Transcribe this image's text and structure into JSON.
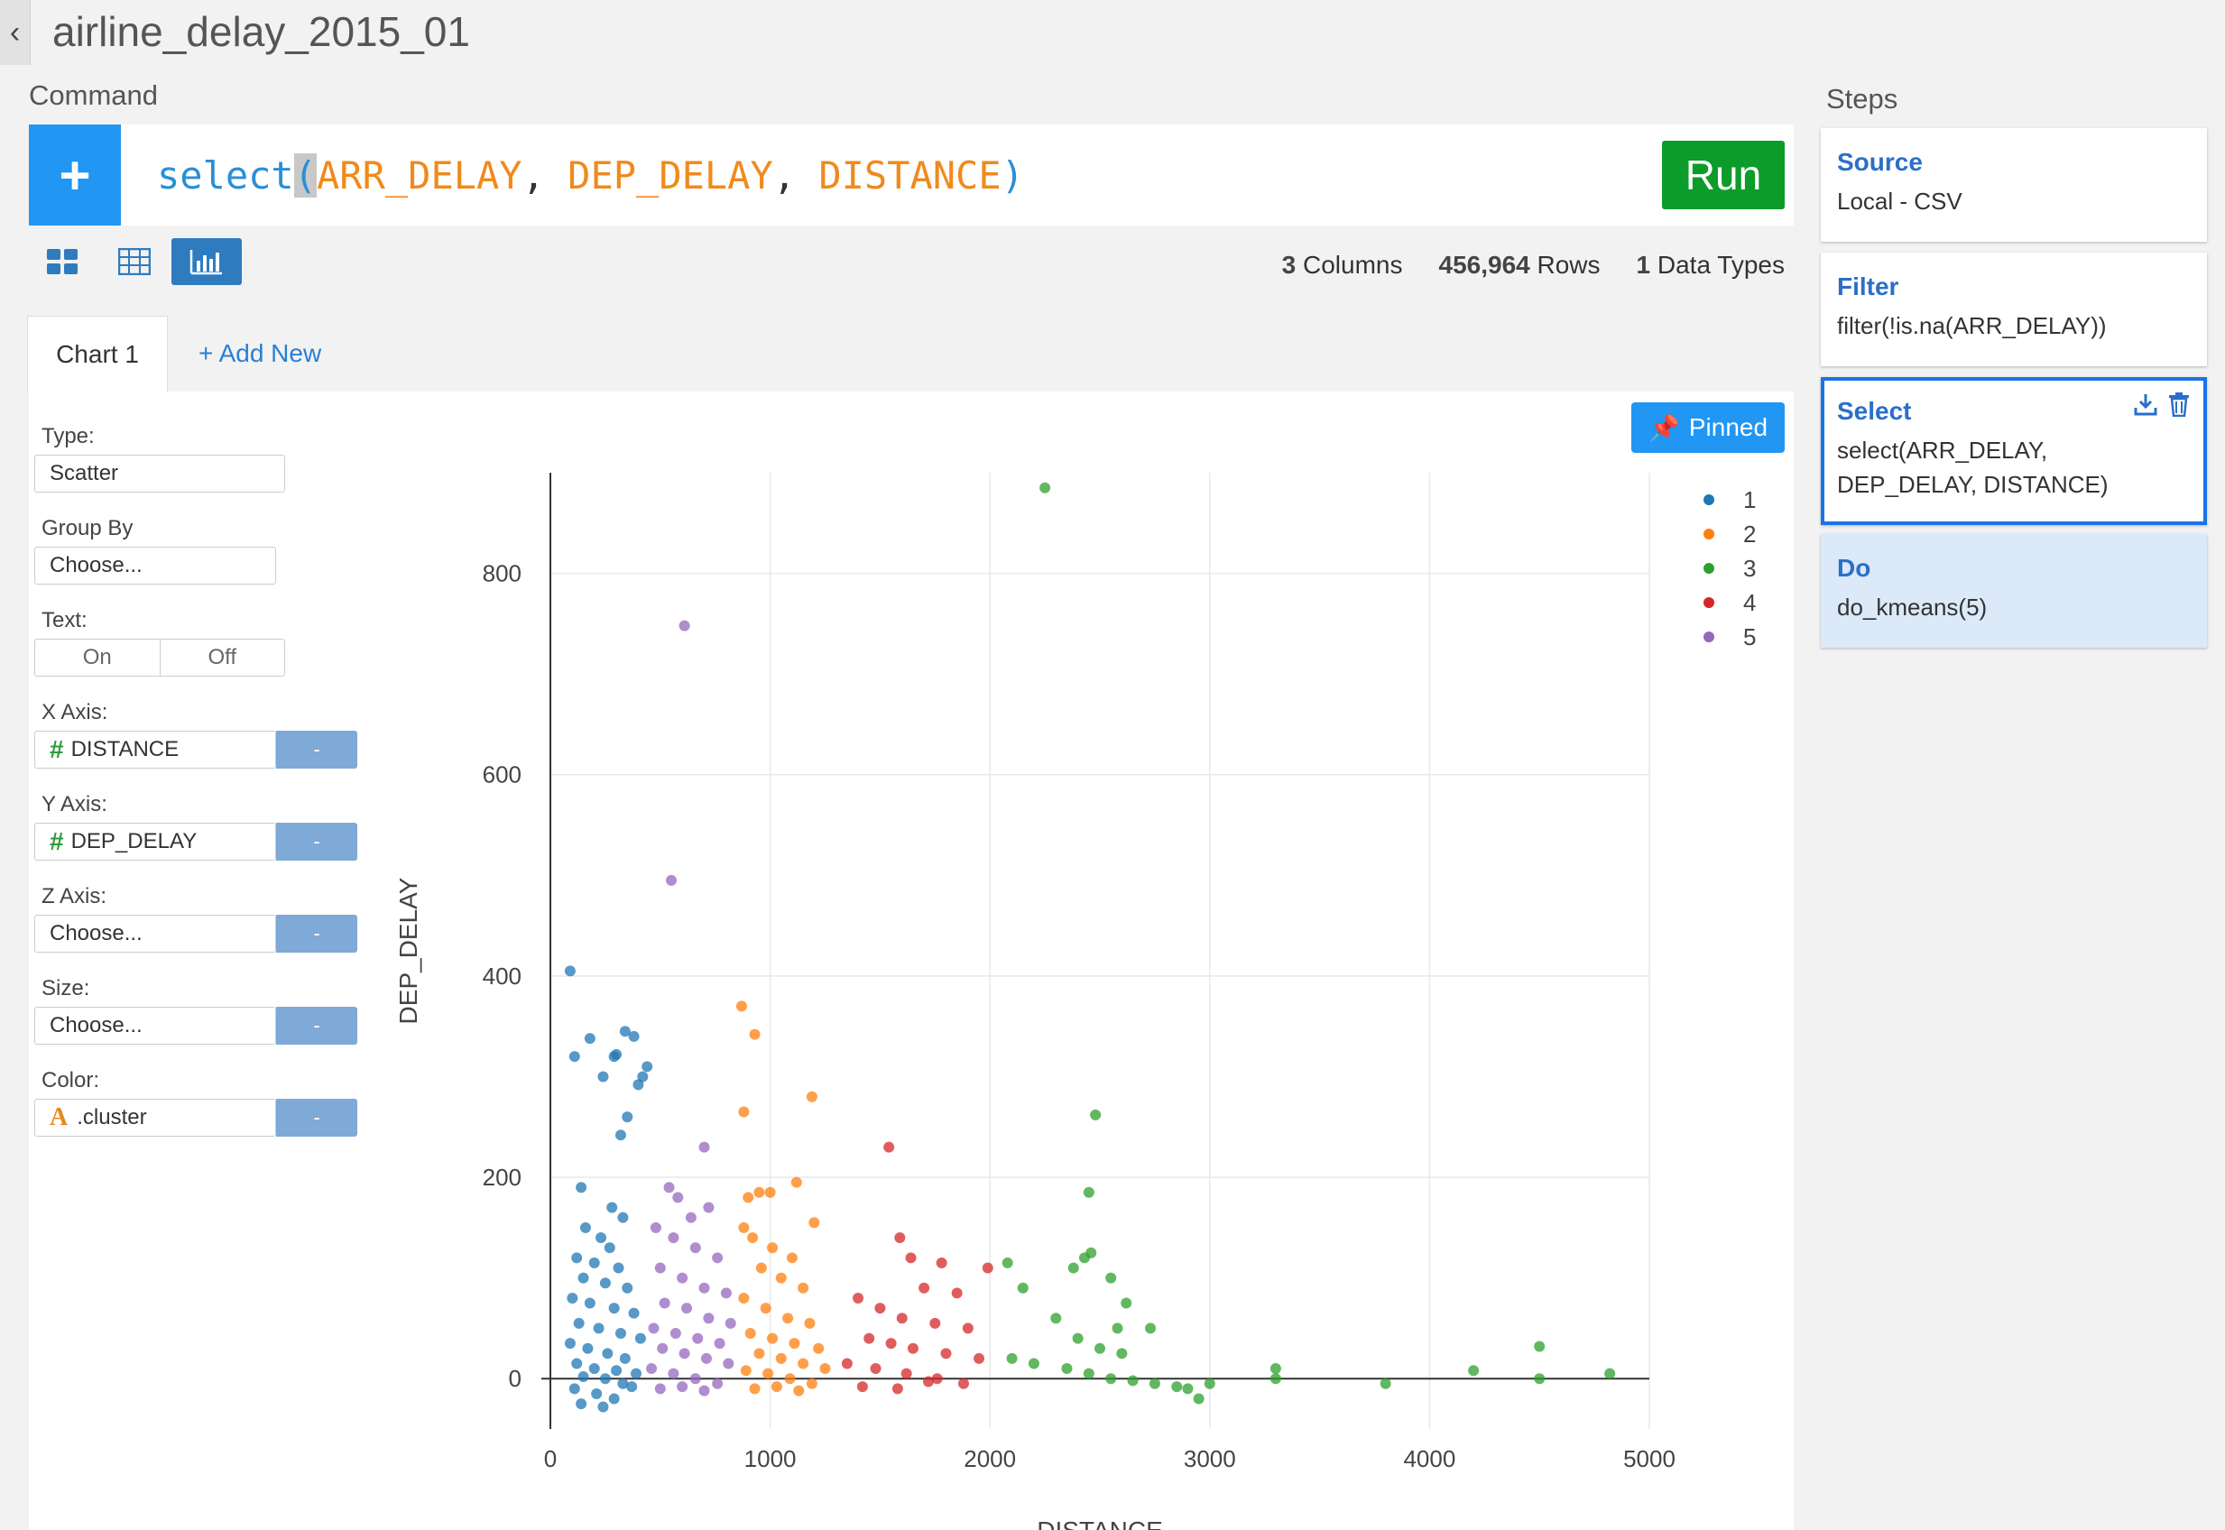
{
  "header": {
    "title": "airline_delay_2015_01",
    "back_icon": "chevron-left-icon"
  },
  "command": {
    "section_label": "Command",
    "code_fn": "select",
    "code_open": "(",
    "code_args": [
      "ARR_DELAY",
      "DEP_DELAY",
      "DISTANCE"
    ],
    "code_sep": ", ",
    "code_close": ")",
    "run_label": "Run",
    "add_icon": "+"
  },
  "view_toggles": [
    "summary-view-icon",
    "table-view-icon",
    "chart-view-icon"
  ],
  "stats": {
    "columns_count": "3",
    "columns_label": "Columns",
    "rows_count": "456,964",
    "rows_label": "Rows",
    "types_count": "1",
    "types_label": "Data Types"
  },
  "tabs": {
    "active": "Chart 1",
    "add_new": "+ Add New"
  },
  "chart_settings": {
    "type_label": "Type:",
    "type_value": "Scatter",
    "group_label": "Group By",
    "group_value": "Choose...",
    "text_label": "Text:",
    "text_on": "On",
    "text_off": "Off",
    "x_label": "X Axis:",
    "x_value": "DISTANCE",
    "y_label": "Y Axis:",
    "y_value": "DEP_DELAY",
    "z_label": "Z Axis:",
    "z_value": "Choose...",
    "size_label": "Size:",
    "size_value": "Choose...",
    "color_label": "Color:",
    "color_value": ".cluster",
    "dash": "-",
    "pinned_label": "Pinned"
  },
  "chart_data": {
    "type": "scatter",
    "xlabel": "DISTANCE",
    "ylabel": "DEP_DELAY",
    "xlim": [
      0,
      5000
    ],
    "ylim": [
      -50,
      900
    ],
    "xticks": [
      0,
      1000,
      2000,
      3000,
      4000,
      5000
    ],
    "yticks": [
      0,
      200,
      400,
      600,
      800
    ],
    "grid": true,
    "legend_position": "top-right",
    "colors": [
      "#1f77b4",
      "#ff7f0e",
      "#2ca02c",
      "#d62728",
      "#9467bd"
    ],
    "series": [
      {
        "name": "1",
        "points": [
          [
            90,
            405
          ],
          [
            110,
            320
          ],
          [
            180,
            338
          ],
          [
            240,
            300
          ],
          [
            290,
            320
          ],
          [
            300,
            322
          ],
          [
            340,
            345
          ],
          [
            380,
            340
          ],
          [
            420,
            300
          ],
          [
            440,
            310
          ],
          [
            400,
            292
          ],
          [
            350,
            260
          ],
          [
            320,
            242
          ],
          [
            140,
            190
          ],
          [
            280,
            170
          ],
          [
            330,
            160
          ],
          [
            160,
            150
          ],
          [
            230,
            140
          ],
          [
            270,
            130
          ],
          [
            120,
            120
          ],
          [
            200,
            115
          ],
          [
            310,
            110
          ],
          [
            150,
            100
          ],
          [
            250,
            95
          ],
          [
            350,
            90
          ],
          [
            100,
            80
          ],
          [
            180,
            75
          ],
          [
            290,
            70
          ],
          [
            380,
            65
          ],
          [
            130,
            55
          ],
          [
            220,
            50
          ],
          [
            320,
            45
          ],
          [
            410,
            40
          ],
          [
            90,
            35
          ],
          [
            170,
            30
          ],
          [
            260,
            25
          ],
          [
            340,
            20
          ],
          [
            120,
            15
          ],
          [
            200,
            10
          ],
          [
            300,
            8
          ],
          [
            390,
            5
          ],
          [
            150,
            2
          ],
          [
            250,
            0
          ],
          [
            330,
            -5
          ],
          [
            110,
            -10
          ],
          [
            210,
            -15
          ],
          [
            290,
            -20
          ],
          [
            370,
            -8
          ],
          [
            140,
            -25
          ],
          [
            240,
            -28
          ]
        ]
      },
      {
        "name": "2",
        "points": [
          [
            870,
            370
          ],
          [
            930,
            342
          ],
          [
            880,
            265
          ],
          [
            1190,
            280
          ],
          [
            1120,
            195
          ],
          [
            900,
            180
          ],
          [
            950,
            185
          ],
          [
            1000,
            185
          ],
          [
            1200,
            155
          ],
          [
            880,
            150
          ],
          [
            920,
            140
          ],
          [
            1010,
            130
          ],
          [
            1100,
            120
          ],
          [
            960,
            110
          ],
          [
            1050,
            100
          ],
          [
            1150,
            90
          ],
          [
            880,
            80
          ],
          [
            980,
            70
          ],
          [
            1080,
            60
          ],
          [
            1180,
            55
          ],
          [
            910,
            45
          ],
          [
            1010,
            40
          ],
          [
            1110,
            35
          ],
          [
            1220,
            30
          ],
          [
            950,
            25
          ],
          [
            1050,
            20
          ],
          [
            1150,
            15
          ],
          [
            1250,
            10
          ],
          [
            890,
            8
          ],
          [
            990,
            5
          ],
          [
            1090,
            0
          ],
          [
            1190,
            -5
          ],
          [
            930,
            -10
          ],
          [
            1030,
            -8
          ],
          [
            1130,
            -12
          ]
        ]
      },
      {
        "name": "3",
        "points": [
          [
            2250,
            885
          ],
          [
            2480,
            262
          ],
          [
            2450,
            185
          ],
          [
            2430,
            120
          ],
          [
            2460,
            125
          ],
          [
            2080,
            115
          ],
          [
            2150,
            90
          ],
          [
            2380,
            110
          ],
          [
            2550,
            100
          ],
          [
            2620,
            75
          ],
          [
            2580,
            50
          ],
          [
            2300,
            60
          ],
          [
            2400,
            40
          ],
          [
            2500,
            30
          ],
          [
            2600,
            25
          ],
          [
            2100,
            20
          ],
          [
            2200,
            15
          ],
          [
            2350,
            10
          ],
          [
            2450,
            5
          ],
          [
            2550,
            0
          ],
          [
            2650,
            -2
          ],
          [
            2750,
            -5
          ],
          [
            2900,
            -10
          ],
          [
            2950,
            -20
          ],
          [
            3000,
            -5
          ],
          [
            3300,
            0
          ],
          [
            3300,
            10
          ],
          [
            3800,
            -5
          ],
          [
            4200,
            8
          ],
          [
            4500,
            32
          ],
          [
            4500,
            0
          ],
          [
            4820,
            5
          ],
          [
            2730,
            50
          ],
          [
            2850,
            -8
          ]
        ]
      },
      {
        "name": "4",
        "points": [
          [
            1540,
            230
          ],
          [
            1590,
            140
          ],
          [
            1640,
            120
          ],
          [
            1780,
            115
          ],
          [
            1990,
            110
          ],
          [
            1700,
            90
          ],
          [
            1850,
            85
          ],
          [
            1400,
            80
          ],
          [
            1500,
            70
          ],
          [
            1600,
            60
          ],
          [
            1750,
            55
          ],
          [
            1900,
            50
          ],
          [
            1450,
            40
          ],
          [
            1550,
            35
          ],
          [
            1650,
            30
          ],
          [
            1800,
            25
          ],
          [
            1950,
            20
          ],
          [
            1350,
            15
          ],
          [
            1480,
            10
          ],
          [
            1620,
            5
          ],
          [
            1760,
            0
          ],
          [
            1880,
            -5
          ],
          [
            1420,
            -8
          ],
          [
            1580,
            -10
          ],
          [
            1720,
            -3
          ]
        ]
      },
      {
        "name": "5",
        "points": [
          [
            610,
            748
          ],
          [
            550,
            495
          ],
          [
            700,
            230
          ],
          [
            540,
            190
          ],
          [
            580,
            180
          ],
          [
            640,
            160
          ],
          [
            720,
            170
          ],
          [
            480,
            150
          ],
          [
            560,
            140
          ],
          [
            660,
            130
          ],
          [
            760,
            120
          ],
          [
            500,
            110
          ],
          [
            600,
            100
          ],
          [
            700,
            90
          ],
          [
            800,
            85
          ],
          [
            520,
            75
          ],
          [
            620,
            70
          ],
          [
            720,
            60
          ],
          [
            820,
            55
          ],
          [
            470,
            50
          ],
          [
            570,
            45
          ],
          [
            670,
            40
          ],
          [
            770,
            35
          ],
          [
            510,
            30
          ],
          [
            610,
            25
          ],
          [
            710,
            20
          ],
          [
            810,
            15
          ],
          [
            460,
            10
          ],
          [
            560,
            5
          ],
          [
            660,
            0
          ],
          [
            760,
            -5
          ],
          [
            500,
            -10
          ],
          [
            600,
            -8
          ],
          [
            700,
            -12
          ]
        ]
      }
    ]
  },
  "steps": {
    "section_label": "Steps",
    "items": [
      {
        "title": "Source",
        "body": "Local - CSV"
      },
      {
        "title": "Filter",
        "body": "filter(!is.na(ARR_DELAY))"
      },
      {
        "title": "Select",
        "body": "select(ARR_DELAY, DEP_DELAY, DISTANCE)"
      },
      {
        "title": "Do",
        "body": "do_kmeans(5)"
      }
    ]
  }
}
